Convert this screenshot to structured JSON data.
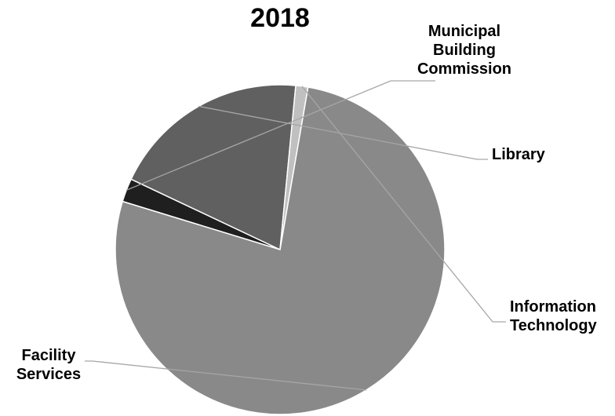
{
  "chart_data": {
    "type": "pie",
    "title": "2018",
    "slices": [
      {
        "label": [
          "Municipal",
          "Building",
          "Commission"
        ],
        "value": 2.3,
        "color": "#1f1f1f"
      },
      {
        "label": [
          "Library"
        ],
        "value": 19.5,
        "color": "#606060"
      },
      {
        "label": [
          "Information",
          "Technology"
        ],
        "value": 1.2,
        "color": "#c0c0c0"
      },
      {
        "label": [
          "Facility",
          "Services"
        ],
        "value": 77.0,
        "color": "#898989"
      }
    ],
    "legend": "none",
    "data_labels": "category names outside with leader lines"
  }
}
